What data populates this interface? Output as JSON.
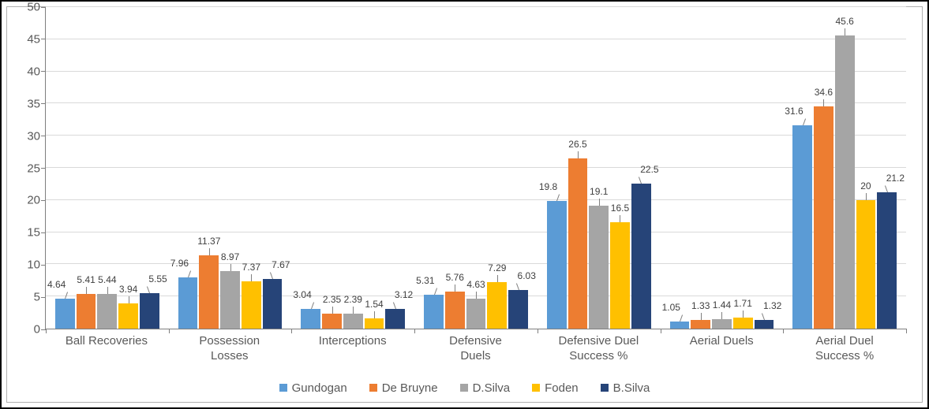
{
  "chart": {
    "type": "bar",
    "background_color": "#ffffff",
    "border_color": "#000000",
    "inner_border_color": "#b0b0b0",
    "grid_color": "#d9d9d9",
    "axis_color": "#7f7f7f",
    "label_color": "#595959",
    "datalabel_color": "#404040",
    "tick_fontsize": 15,
    "category_fontsize": 15,
    "datalabel_fontsize": 12,
    "legend_fontsize": 15,
    "ylim": [
      0,
      50
    ],
    "ytick_step": 5,
    "yticks": [
      0,
      5,
      10,
      15,
      20,
      25,
      30,
      35,
      40,
      45,
      50
    ],
    "categories": [
      "Ball Recoveries",
      "Possession\nLosses",
      "Interceptions",
      "Defensive\nDuels",
      "Defensive Duel\nSuccess %",
      "Aerial Duels",
      "Aerial Duel\nSuccess %"
    ],
    "series": [
      {
        "name": "Gundogan",
        "color": "#5b9bd5",
        "values": [
          4.64,
          7.96,
          3.04,
          5.31,
          19.8,
          1.05,
          31.6
        ]
      },
      {
        "name": "De Bruyne",
        "color": "#ed7d31",
        "values": [
          5.41,
          11.37,
          2.35,
          5.76,
          26.5,
          1.33,
          34.6
        ]
      },
      {
        "name": "D.Silva",
        "color": "#a5a5a5",
        "values": [
          5.44,
          8.97,
          2.39,
          4.63,
          19.1,
          1.44,
          45.6
        ]
      },
      {
        "name": "Foden",
        "color": "#ffc000",
        "values": [
          3.94,
          7.37,
          1.54,
          7.29,
          16.5,
          1.71,
          20.0
        ]
      },
      {
        "name": "B.Silva",
        "color": "#264478",
        "values": [
          5.55,
          7.67,
          3.12,
          6.03,
          22.5,
          1.32,
          21.2
        ]
      }
    ],
    "data_labels": [
      [
        "4.64",
        "5.41",
        "5.44",
        "3.94",
        "5.55"
      ],
      [
        "7.96",
        "11.37",
        "8.97",
        "7.37",
        "7.67"
      ],
      [
        "3.04",
        "2.35",
        "2.39",
        "1.54",
        "3.12"
      ],
      [
        "5.31",
        "5.76",
        "4.63",
        "7.29",
        "6.03"
      ],
      [
        "19.8",
        "26.5",
        "19.1",
        "16.5",
        "22.5"
      ],
      [
        "1.05",
        "1.33",
        "1.44",
        "1.71",
        "1.32"
      ],
      [
        "31.6",
        "34.6",
        "45.6",
        "20",
        "21.2"
      ]
    ]
  }
}
